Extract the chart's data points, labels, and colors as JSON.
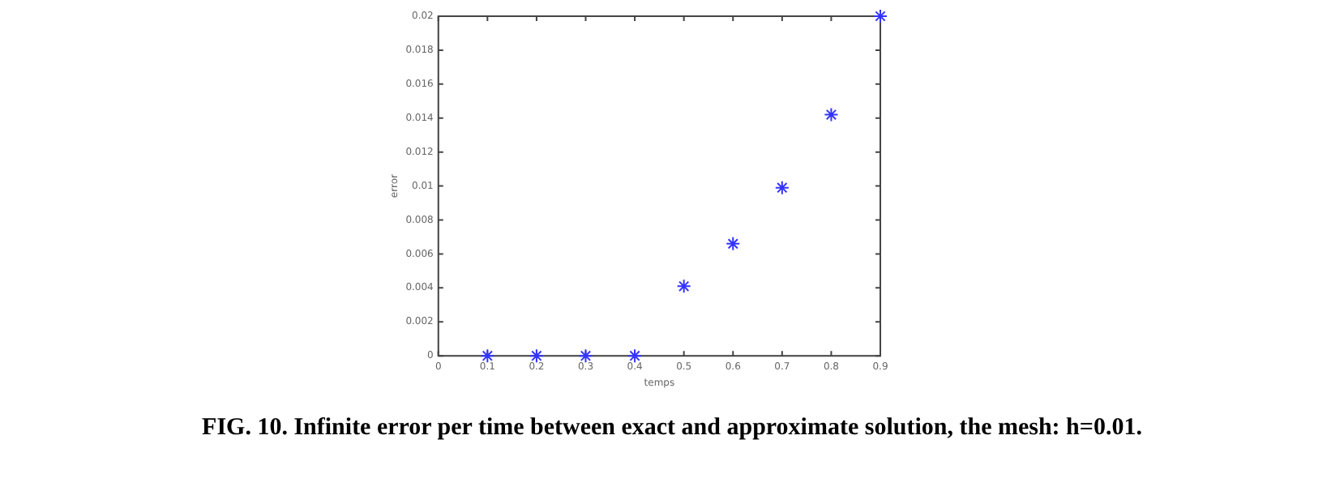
{
  "chart_data": {
    "type": "scatter",
    "xlabel": "temps",
    "ylabel": "error",
    "x": [
      0.1,
      0.2,
      0.3,
      0.4,
      0.5,
      0.6,
      0.7,
      0.8,
      0.9
    ],
    "series": [
      {
        "color": "#3333ff",
        "values": [
          0,
          0,
          0,
          0,
          0.0041,
          0.0066,
          0.0099,
          0.0142,
          0.02
        ]
      }
    ],
    "xlim": [
      0,
      0.9
    ],
    "xticks": [
      0,
      0.1,
      0.2,
      0.3,
      0.4,
      0.5,
      0.6,
      0.7,
      0.8,
      0.9
    ],
    "ylim": [
      0,
      0.02
    ],
    "yticks": [
      0,
      0.002,
      0.004,
      0.006,
      0.008,
      0.01,
      0.012,
      0.014,
      0.016,
      0.018,
      0.02
    ],
    "marker": "cross",
    "grid": false,
    "legend": false,
    "annotations": [
      "FIG. 10. Infinite error per time between exact and approximate solution, the mesh: h=0.01."
    ]
  }
}
